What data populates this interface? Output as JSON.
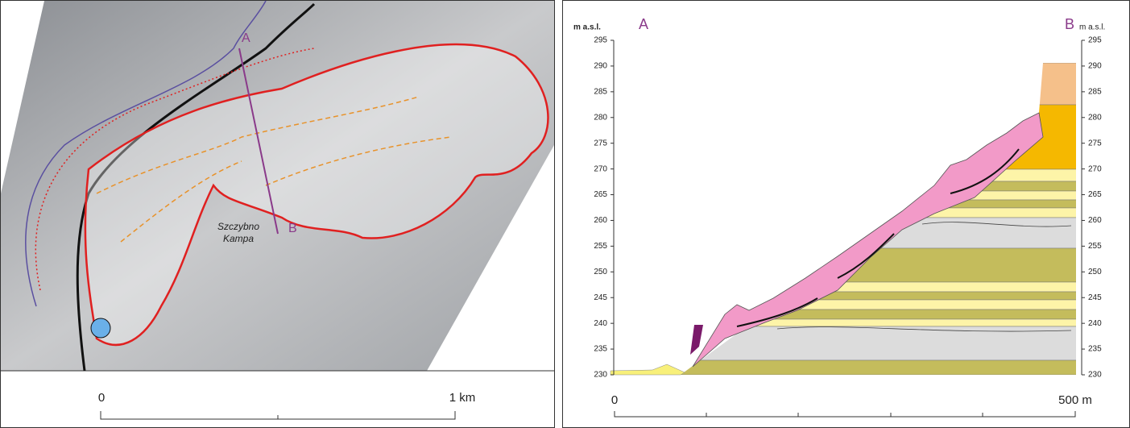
{
  "map": {
    "section_start": "A",
    "section_end": "B",
    "place_name": [
      "Szczybno",
      "Kampa"
    ],
    "scale_bar": {
      "start": "0",
      "end": "1 km"
    }
  },
  "profile": {
    "y_label": "m a.s.l.",
    "start": "A",
    "end": "B",
    "ylim": [
      230,
      295
    ],
    "yticks": [
      230,
      235,
      240,
      245,
      250,
      255,
      260,
      265,
      270,
      275,
      280,
      285,
      290,
      295
    ],
    "x_start": "0",
    "x_end": "500 m"
  }
}
